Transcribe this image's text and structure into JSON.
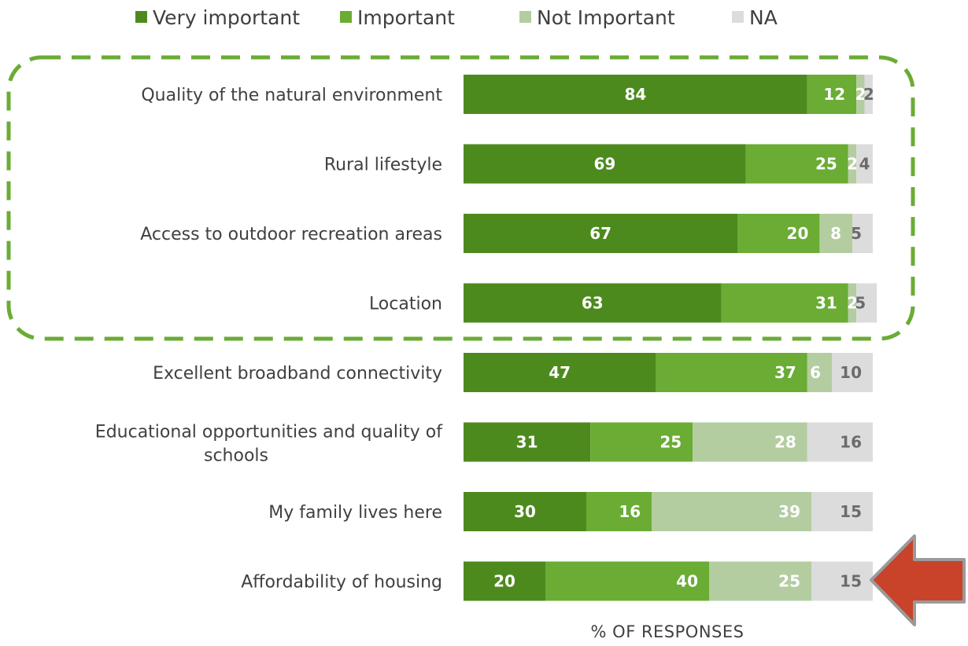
{
  "chart_data": {
    "type": "bar",
    "orientation": "horizontal",
    "stacked": true,
    "categories": [
      "Quality of the natural environment",
      "Rural lifestyle",
      "Access to outdoor recreation areas",
      "Location",
      "Excellent broadband connectivity",
      "Educational opportunities and quality of schools",
      "My family lives here",
      "Affordability of housing"
    ],
    "series": [
      {
        "name": "Very important",
        "color": "#4d8a1e",
        "values": [
          84,
          69,
          67,
          63,
          47,
          31,
          30,
          20
        ]
      },
      {
        "name": "Important",
        "color": "#6aac34",
        "values": [
          12,
          25,
          20,
          31,
          37,
          25,
          16,
          40
        ]
      },
      {
        "name": "Not Important",
        "color": "#b3cda0",
        "values": [
          2,
          2,
          8,
          2,
          6,
          28,
          39,
          25
        ]
      },
      {
        "name": "NA",
        "color": "#dcdcdc",
        "values": [
          2,
          4,
          5,
          5,
          10,
          16,
          15,
          15
        ]
      }
    ],
    "xlabel": "% OF RESPONSES",
    "ylabel": "",
    "xlim": [
      0,
      100
    ],
    "legend_position": "top",
    "grid": false,
    "annotations": {
      "highlight_box": {
        "style": "dashed rounded rectangle",
        "color": "#6aac34",
        "around_categories": [
          0,
          1,
          2,
          3
        ]
      },
      "arrow": {
        "color": "#c8432a",
        "direction": "left",
        "points_to_category": 7
      }
    }
  }
}
